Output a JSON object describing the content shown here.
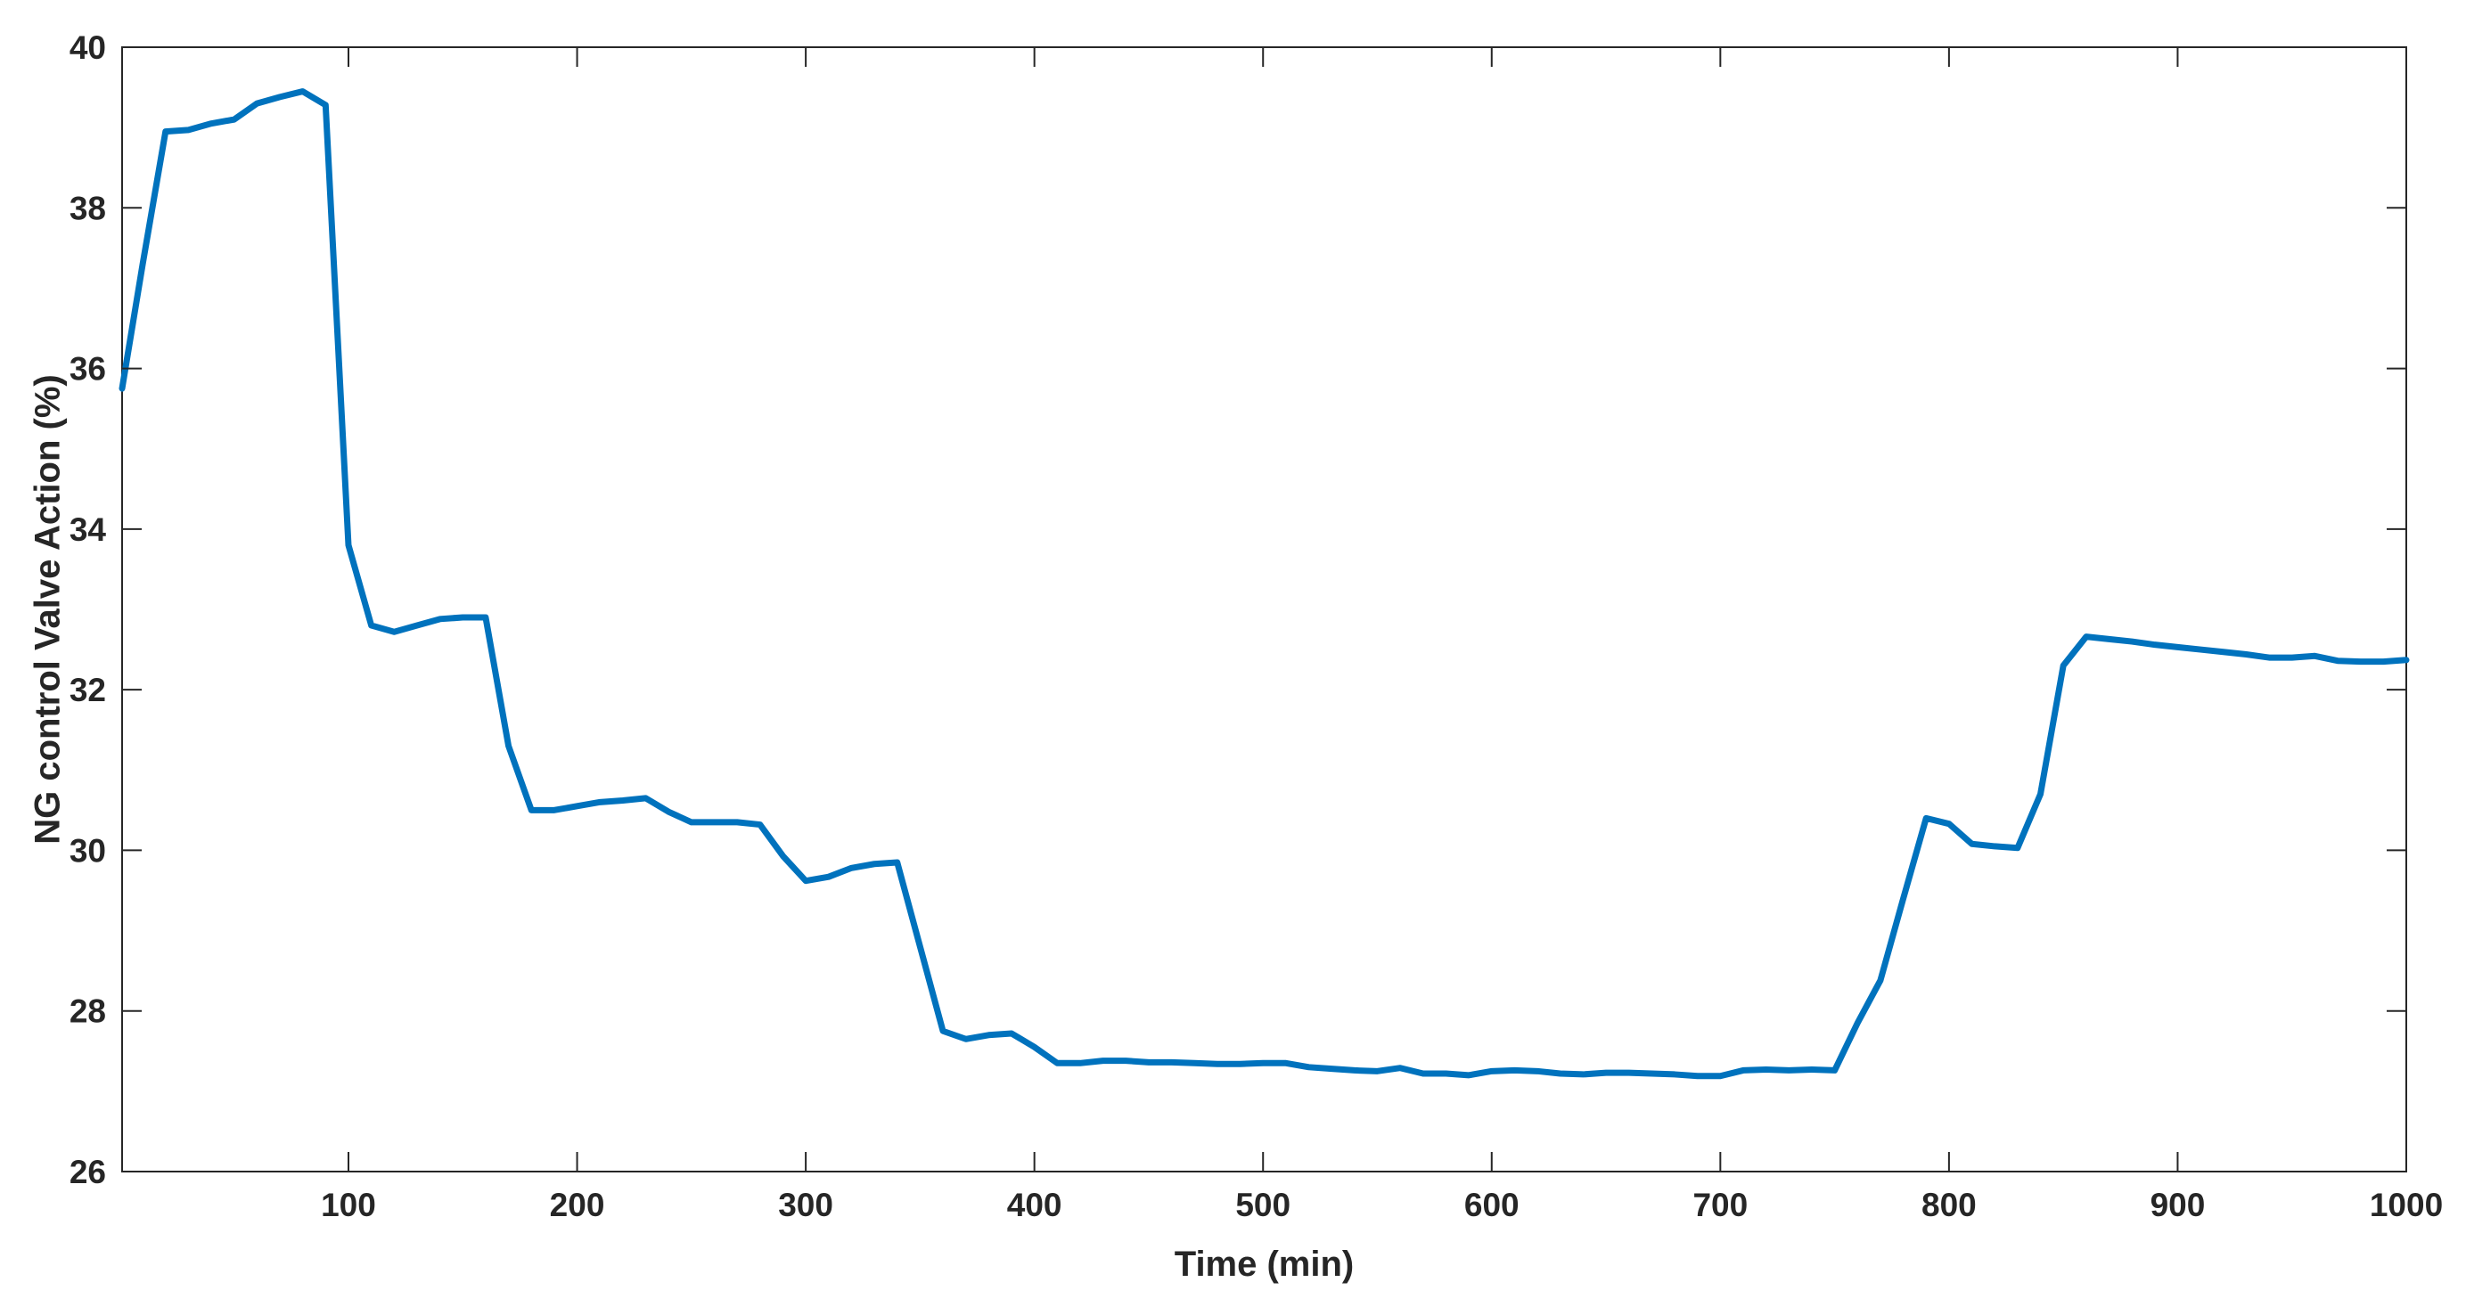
{
  "chart_data": {
    "type": "line",
    "title": "",
    "xlabel": "Time (min)",
    "ylabel": "NG control Valve Action (%)",
    "xlim": [
      1,
      1000
    ],
    "ylim": [
      26,
      40
    ],
    "xticks": [
      100,
      200,
      300,
      400,
      500,
      600,
      700,
      800,
      900,
      1000
    ],
    "yticks": [
      26,
      28,
      30,
      32,
      34,
      36,
      38,
      40
    ],
    "grid": false,
    "legend": "none",
    "colors": {
      "line": "#0072BD",
      "axes": "#262626",
      "background": "#ffffff"
    },
    "series": [
      {
        "x": [
          1,
          10,
          20,
          30,
          40,
          50,
          60,
          70,
          80,
          90,
          100,
          110,
          120,
          130,
          140,
          150,
          160,
          170,
          180,
          190,
          200,
          210,
          220,
          230,
          240,
          250,
          260,
          270,
          280,
          290,
          300,
          310,
          320,
          330,
          340,
          350,
          360,
          370,
          380,
          390,
          400,
          410,
          420,
          430,
          440,
          450,
          460,
          470,
          480,
          490,
          500,
          510,
          520,
          530,
          540,
          550,
          560,
          570,
          580,
          590,
          600,
          610,
          620,
          630,
          640,
          650,
          660,
          670,
          680,
          690,
          700,
          710,
          720,
          730,
          740,
          750,
          760,
          770,
          780,
          790,
          800,
          810,
          820,
          830,
          840,
          850,
          860,
          870,
          880,
          890,
          900,
          910,
          920,
          930,
          940,
          950,
          960,
          970,
          980,
          990,
          1000
        ],
        "y": [
          35.75,
          37.3,
          38.95,
          38.97,
          39.05,
          39.1,
          39.3,
          39.38,
          39.45,
          39.28,
          33.8,
          32.8,
          32.72,
          32.8,
          32.88,
          32.9,
          32.9,
          31.3,
          30.5,
          30.5,
          30.55,
          30.6,
          30.62,
          30.65,
          30.48,
          30.35,
          30.35,
          30.35,
          30.32,
          29.93,
          29.62,
          29.67,
          29.78,
          29.83,
          29.85,
          28.8,
          27.75,
          27.65,
          27.7,
          27.72,
          27.55,
          27.35,
          27.35,
          27.38,
          27.38,
          27.36,
          27.36,
          27.35,
          27.34,
          27.34,
          27.35,
          27.35,
          27.3,
          27.28,
          27.26,
          27.25,
          27.29,
          27.22,
          27.22,
          27.2,
          27.25,
          27.26,
          27.25,
          27.22,
          27.21,
          27.23,
          27.23,
          27.22,
          27.21,
          27.19,
          27.19,
          27.26,
          27.27,
          27.26,
          27.27,
          27.26,
          27.85,
          28.38,
          29.4,
          30.4,
          30.33,
          30.08,
          30.05,
          30.03,
          30.7,
          32.3,
          32.66,
          32.63,
          32.6,
          32.56,
          32.53,
          32.5,
          32.47,
          32.44,
          32.4,
          32.4,
          32.42,
          32.36,
          32.35,
          32.35,
          32.37
        ]
      }
    ]
  }
}
